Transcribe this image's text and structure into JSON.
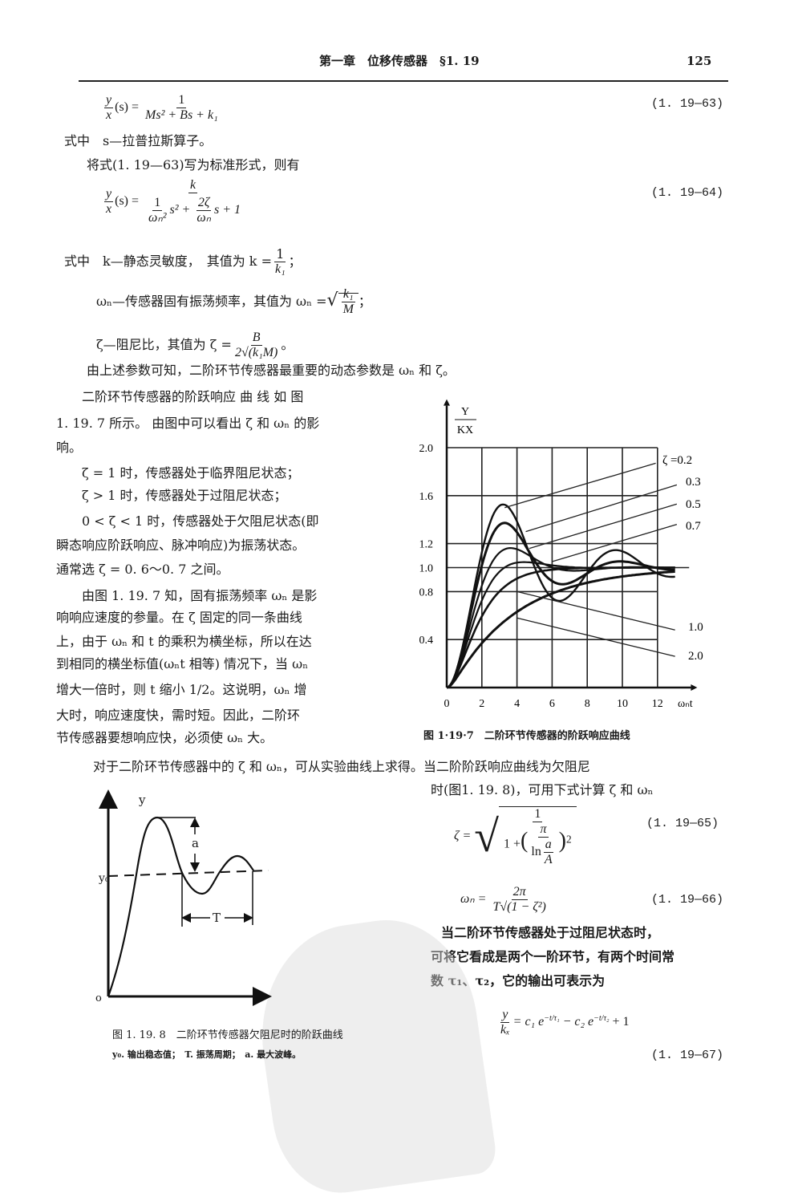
{
  "header": {
    "title": "第一章　位移传感器　§1. 19",
    "page_number": "125"
  },
  "eq63": {
    "lhs_num": "y",
    "lhs_den": "x",
    "lhs_arg": "(s) =",
    "num": "1",
    "den": "Ms² + Bs + k₁",
    "label": "(1. 19—63)"
  },
  "line_s": "式中　s—拉普拉斯算子。",
  "line_std": "将式(1. 19—63)写为标准形式，则有",
  "eq64": {
    "lhs_num": "y",
    "lhs_den": "x",
    "lhs_arg": "(s) =",
    "num": "k",
    "t1_num": "1",
    "t1_den": "ωₙ²",
    "t1_rest": "s² +",
    "t2_num": "2ζ",
    "t2_den": "ωₙ",
    "t2_rest": "s + 1",
    "label": "(1. 19—64)"
  },
  "def_k": {
    "text": "式中　k—静态灵敏度，　其值为 k =",
    "num": "1",
    "den": "k₁",
    "end": "；"
  },
  "def_wn": {
    "text": "ωₙ—传感器固有振荡频率，其值为 ωₙ =",
    "rad_num": "k₁",
    "rad_den": "M",
    "end": "；"
  },
  "def_zeta": {
    "text": "ζ—阻尼比，其值为 ζ =",
    "num": "B",
    "den": "2√(k₁M)",
    "end": "。"
  },
  "line_params": "由上述参数可知，二阶环节传感器最重要的动态参数是 ωₙ 和 ζ。",
  "left_paragraph": [
    "　　二阶环节传感器的阶跃响应 曲 线 如 图",
    "1. 19. 7 所示。 由图中可以看出 ζ 和 ωₙ 的影",
    "响。",
    "　　ζ = 1 时，传感器处于临界阻尼状态；",
    "　　ζ > 1 时，传感器处于过阻尼状态；",
    "　　0 < ζ < 1 时，传感器处于欠阻尼状态(即",
    "瞬态响应阶跃响应、脉冲响应)为振荡状态。",
    "通常选 ζ = 0. 6～0. 7 之间。",
    "　　由图 1. 19. 7 知，固有振荡频率 ωₙ 是影",
    "响响应速度的参量。在 ζ 固定的同一条曲线",
    "上，由于 ωₙ 和 t 的乘积为横坐标，所以在达",
    "到相同的横坐标值(ωₙt 相等) 情况下，当 ωₙ",
    "增大一倍时，则 t 缩小 1/2。这说明，ωₙ 增",
    "大时，响应速度快，需时短。因此，二阶环",
    "节传感器要想响应快，必须使 ωₙ 大。"
  ],
  "chart_data": {
    "type": "line",
    "title": "图 1·19·7　二阶环节传感器的阶跃响应曲线",
    "ylabel_num": "Y",
    "ylabel_den": "KX",
    "xlabel": "ωₙt",
    "xlim": [
      0,
      13
    ],
    "ylim": [
      0,
      2.0
    ],
    "xticks": [
      "0",
      "2",
      "4",
      "6",
      "8",
      "10",
      "12"
    ],
    "xtick_values": [
      0,
      2,
      4,
      6,
      8,
      10,
      12
    ],
    "yticks": [
      "0.4",
      "0.8",
      "1.0",
      "1.2",
      "1.6",
      "2.0"
    ],
    "ytick_values": [
      0.4,
      0.8,
      1.0,
      1.2,
      1.6,
      2.0
    ],
    "grid": true,
    "series": [
      {
        "name": "ζ =0.2",
        "zeta": 0.2
      },
      {
        "name": "0.3",
        "zeta": 0.3
      },
      {
        "name": "0.5",
        "zeta": 0.5
      },
      {
        "name": "0.7",
        "zeta": 0.7
      },
      {
        "name": "1.0",
        "zeta": 1.0
      },
      {
        "name": "2.0",
        "zeta": 2.0
      }
    ]
  },
  "line_bottom1": "对于二阶环节传感器中的 ζ 和 ωₙ，可从实验曲线上求得。当二阶阶跃响应曲线为欠阻尼",
  "line_bottom2": "时(图1. 19. 8)，可用下式计算 ζ 和 ωₙ",
  "eq65": {
    "lhs": "ζ =",
    "num": "1",
    "one_plus": "1 +",
    "pi": "π",
    "ln": "ln",
    "a": "a",
    "A": "A",
    "sq": "2",
    "label": "(1. 19—65)"
  },
  "eq66": {
    "lhs": "ωₙ =",
    "num": "2π",
    "den": "T√(1 − ζ²)",
    "label": "(1. 19—66)"
  },
  "line_over1": "当二阶环节传感器处于过阻尼状态时，",
  "line_over2": "可将它看成是两个一阶环节，有两个时间常",
  "line_over3": "数 τ₁、τ₂，它的输出可表示为",
  "eq67": {
    "lhs_num": "y",
    "lhs_den": "kₓ",
    "rhs": "= c₁ e",
    "exp1": "−t/τ₁",
    "mid": " − c₂ e",
    "exp2": "−t/τ₂",
    "end": " + 1",
    "label": "(1. 19—67)"
  },
  "fig8": {
    "y_label": "y",
    "y0_label": "y₀",
    "origin_label": "o",
    "a_label": "a",
    "T_label": "T",
    "caption": "图 1. 19. 8　二阶环节传感器欠阻尼时的阶跃曲线",
    "legend": "y₀. 输出稳态值；　T. 振荡周期；　a. 最大波峰。"
  }
}
